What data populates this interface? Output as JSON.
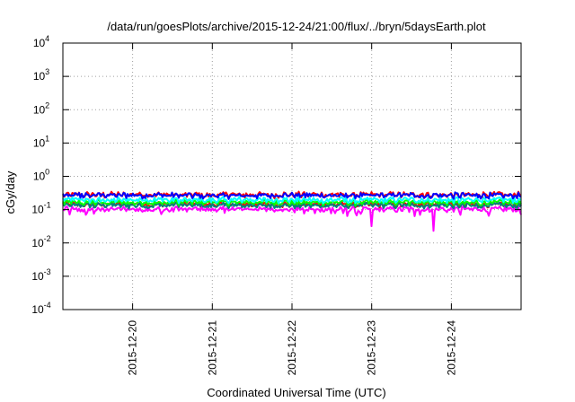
{
  "chart_data": {
    "type": "line",
    "title": "/data/run/goesPlots/archive/2015-12-24/21:00/flux/../bryn/5daysEarth.plot",
    "xlabel": "Coordinated Universal Time (UTC)",
    "ylabel": "cGy/day",
    "yscale": "log",
    "ylim": [
      0.0001,
      10000
    ],
    "xlim": [
      "2015-12-19T03:00",
      "2015-12-24T21:00"
    ],
    "grid": true,
    "y_ticks": [
      {
        "base": "10",
        "exp": "-4"
      },
      {
        "base": "10",
        "exp": "-3"
      },
      {
        "base": "10",
        "exp": "-2"
      },
      {
        "base": "10",
        "exp": "-1"
      },
      {
        "base": "10",
        "exp": "0"
      },
      {
        "base": "10",
        "exp": "1"
      },
      {
        "base": "10",
        "exp": "2"
      },
      {
        "base": "10",
        "exp": "3"
      },
      {
        "base": "10",
        "exp": "4"
      }
    ],
    "x_ticks": [
      "2015-12-20",
      "2015-12-21",
      "2015-12-22",
      "2015-12-23",
      "2015-12-24"
    ],
    "x_tick_times": [
      "2015-12-20T00:00",
      "2015-12-21T00:00",
      "2015-12-22T00:00",
      "2015-12-23T00:00",
      "2015-12-24T00:00"
    ],
    "series": [
      {
        "color": "#ff00ff",
        "level": 0.1,
        "dips": [
          {
            "t": "2015-12-23T00:05",
            "v": 0.032
          },
          {
            "t": "2015-12-23T18:45",
            "v": 0.032
          },
          {
            "t": "2015-12-19T10:00",
            "v": 0.07
          }
        ]
      },
      {
        "color": "#ff0000",
        "level": 0.14
      },
      {
        "color": "#008080",
        "level": 0.13
      },
      {
        "color": "#00ff00",
        "level": 0.16
      },
      {
        "color": "#00ffff",
        "level": 0.19
      },
      {
        "color": "#ff0000",
        "level": 0.27
      },
      {
        "color": "#0000ff",
        "level": 0.26
      }
    ]
  }
}
